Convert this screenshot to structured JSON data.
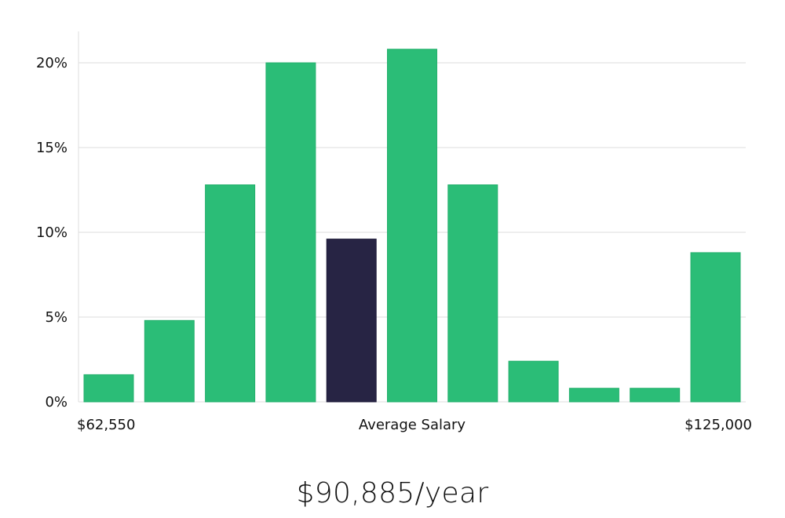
{
  "chart_data": {
    "type": "bar",
    "values": [
      1.6,
      4.8,
      12.8,
      20.0,
      9.6,
      20.8,
      12.8,
      2.4,
      0.8,
      0.8,
      8.8
    ],
    "highlight_index": 4,
    "y_unit": "%",
    "ylim": [
      0,
      22
    ],
    "y_ticks": [
      {
        "value": 0,
        "label": "0%"
      },
      {
        "value": 5,
        "label": "5%"
      },
      {
        "value": 10,
        "label": "10%"
      },
      {
        "value": 15,
        "label": "15%"
      },
      {
        "value": 20,
        "label": "20%"
      }
    ],
    "x_labels": {
      "start": "$62,550",
      "center": "Average Salary",
      "end": "$125,000"
    },
    "grid": true,
    "colors": {
      "bar": "#2bbd77",
      "highlight": "#272444",
      "grid": "#dddddd",
      "axis": "#dddddd"
    }
  },
  "summary": {
    "salary_text": "$90,885/year"
  }
}
